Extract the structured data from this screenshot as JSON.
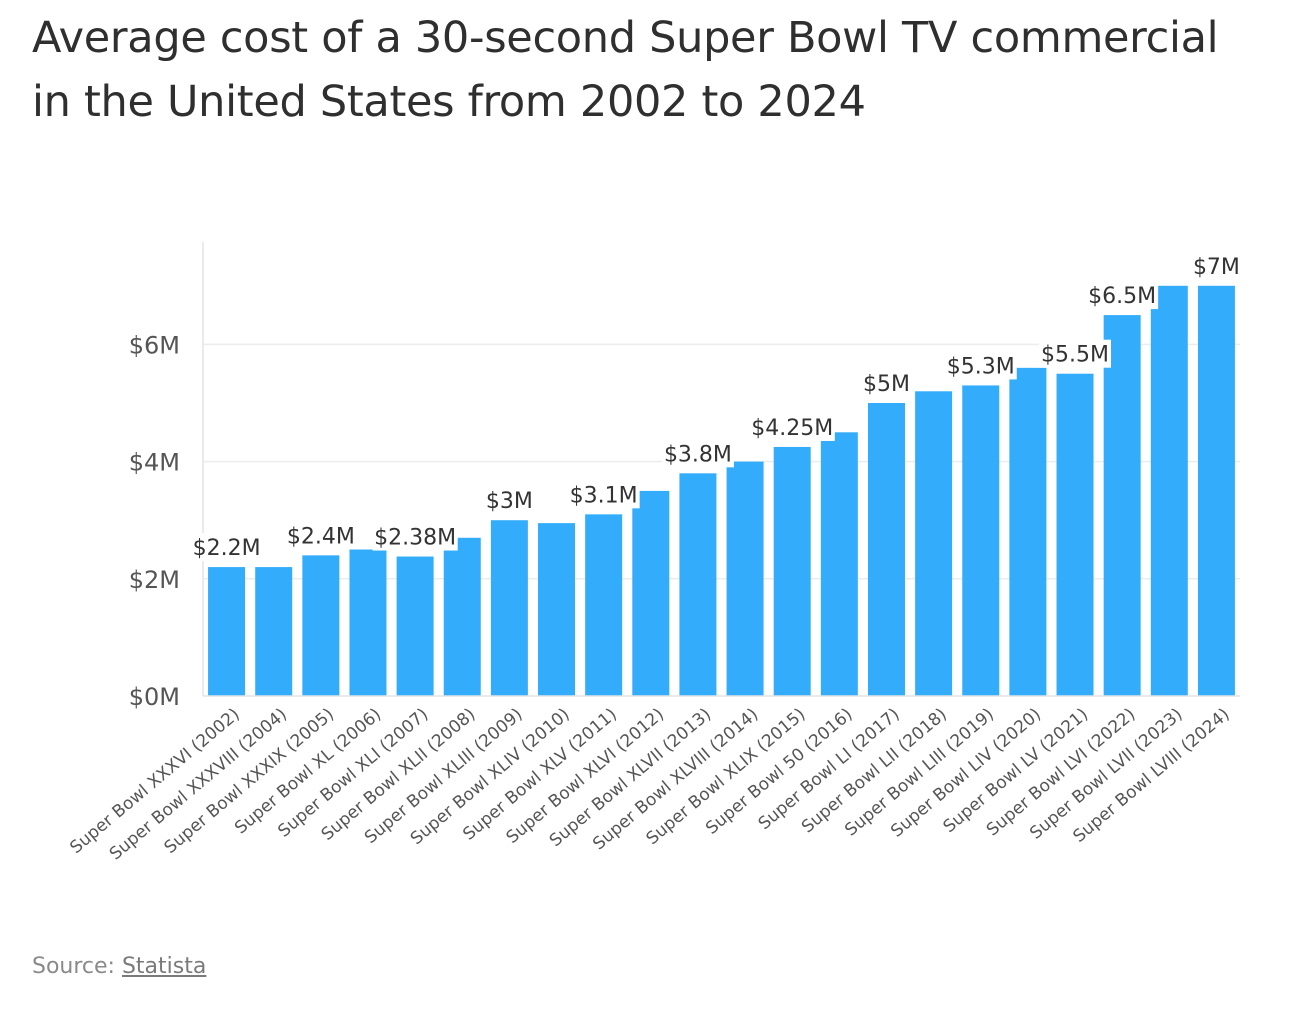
{
  "chart_data": {
    "type": "bar",
    "title": "Average cost of a 30-second Super Bowl TV commercial in the United States from 2002 to 2024",
    "xlabel": "",
    "ylabel": "",
    "ylim": [
      0,
      7
    ],
    "grid": true,
    "legend": "none",
    "bar_color": "#33adfb",
    "yticks": [
      {
        "value": 0,
        "label": "$0M"
      },
      {
        "value": 2,
        "label": "$2M"
      },
      {
        "value": 4,
        "label": "$4M"
      },
      {
        "value": 6,
        "label": "$6M"
      }
    ],
    "categories": [
      "Super Bowl XXXVI (2002)",
      "Super Bowl XXXVIII (2004)",
      "Super Bowl XXXIX (2005)",
      "Super Bowl XL (2006)",
      "Super Bowl XLI (2007)",
      "Super Bowl XLII (2008)",
      "Super Bowl XLIII (2009)",
      "Super Bowl XLIV (2010)",
      "Super Bowl XLV (2011)",
      "Super Bowl XLVI (2012)",
      "Super Bowl XLVII (2013)",
      "Super Bowl XLVIII (2014)",
      "Super Bowl XLIX (2015)",
      "Super Bowl 50 (2016)",
      "Super Bowl LI (2017)",
      "Super Bowl LII (2018)",
      "Super Bowl LIII (2019)",
      "Super Bowl LIV (2020)",
      "Super Bowl LV (2021)",
      "Super Bowl LVI (2022)",
      "Super Bowl LVII (2023)",
      "Super Bowl LVIII (2024)"
    ],
    "values": [
      2.2,
      2.2,
      2.4,
      2.5,
      2.38,
      2.7,
      3.0,
      2.95,
      3.1,
      3.5,
      3.8,
      4.0,
      4.25,
      4.5,
      5.0,
      5.2,
      5.3,
      5.6,
      5.5,
      6.5,
      7.0,
      7.0
    ],
    "data_labels": [
      "$2.2M",
      "",
      "$2.4M",
      "",
      "$2.38M",
      "",
      "$3M",
      "",
      "$3.1M",
      "",
      "$3.8M",
      "",
      "$4.25M",
      "",
      "$5M",
      "",
      "$5.3M",
      "",
      "$5.5M",
      "$6.5M",
      "",
      "$7M"
    ]
  },
  "source": {
    "prefix": "Source: ",
    "link_text": "Statista"
  }
}
